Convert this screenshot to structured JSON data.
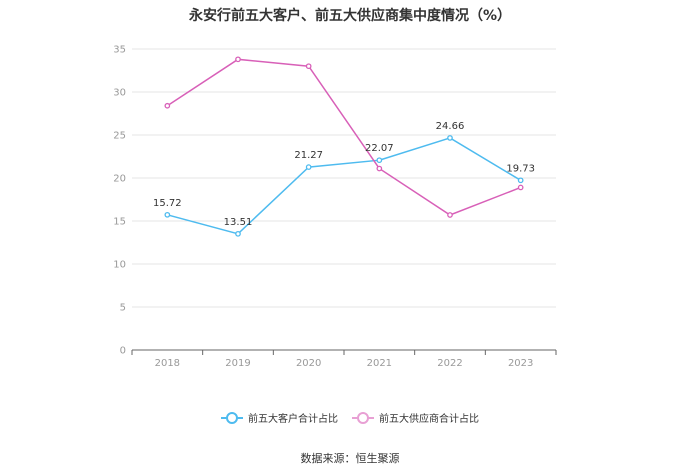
{
  "chart_data": {
    "type": "line",
    "title": "永安行前五大客户、前五大供应商集中度情况（%）",
    "categories": [
      "2018",
      "2019",
      "2020",
      "2021",
      "2022",
      "2023"
    ],
    "ylim": [
      0,
      35
    ],
    "yticks": [
      0,
      5,
      10,
      15,
      20,
      25,
      30,
      35
    ],
    "grid": true,
    "legend_position": "bottom",
    "series": [
      {
        "name": "前五大客户合计占比",
        "color": "#4ebbef",
        "values": [
          15.72,
          13.51,
          21.27,
          22.07,
          24.66,
          19.73
        ],
        "labels": [
          "15.72",
          "13.51",
          "21.27",
          "22.07",
          "24.66",
          "19.73"
        ]
      },
      {
        "name": "前五大供应商合计占比",
        "color": "#d860b8",
        "values": [
          28.4,
          33.8,
          33.0,
          21.1,
          15.7,
          18.9
        ],
        "labels": []
      }
    ]
  },
  "source": "数据来源：恒生聚源"
}
